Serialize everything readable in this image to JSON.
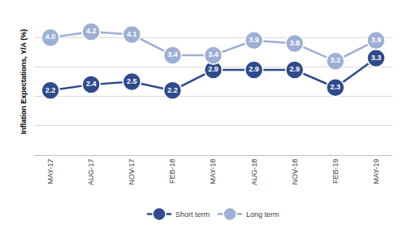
{
  "chart_data": {
    "type": "line",
    "y_label": "Inflation Expectations, Y/A (%)",
    "categories": [
      "MAY-17",
      "AUG-17",
      "NOV-17",
      "FEB-18",
      "MAY-18",
      "AUG-18",
      "NOV-18",
      "FEB-19",
      "MAY-19"
    ],
    "series": [
      {
        "name": "Short term",
        "color": "#2f4b8c",
        "marker": "circle",
        "values": [
          2.2,
          2.4,
          2.5,
          2.2,
          2.9,
          2.9,
          2.9,
          2.3,
          3.3
        ],
        "value_labels": [
          "2.2",
          "2.4",
          "2.5",
          "2.2",
          "2.9",
          "2.9",
          "2.9",
          "2.3",
          "3.3"
        ]
      },
      {
        "name": "Long term",
        "color": "#9dafd4",
        "marker": "circle",
        "values": [
          4,
          4.2,
          4.1,
          3.4,
          3.4,
          3.9,
          3.8,
          3.2,
          3.9
        ],
        "value_labels": [
          "4.0",
          "4.2",
          "4.1",
          "3.4",
          "3.4",
          "3.9",
          "3.8",
          "3.2",
          "3.9"
        ]
      }
    ],
    "ylim": [
      0,
      5
    ],
    "yticks": [
      0,
      1,
      2,
      3,
      4,
      5
    ],
    "grid": true,
    "legend": "bottom",
    "data_labels": true,
    "tick_labels": "x"
  }
}
